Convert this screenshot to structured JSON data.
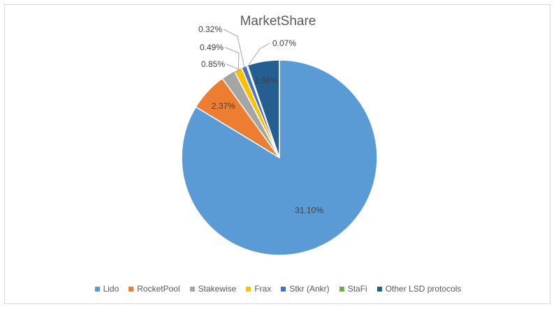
{
  "chart_data": {
    "type": "pie",
    "title": "MarketShare",
    "slices": [
      {
        "label": "Lido",
        "value": 31.1,
        "display": "31.10%",
        "color": "#5b9bd5"
      },
      {
        "label": "RocketPool",
        "value": 2.37,
        "display": "2.37%",
        "color": "#ed7d31"
      },
      {
        "label": "Stakewise",
        "value": 0.85,
        "display": "0.85%",
        "color": "#a5a5a5"
      },
      {
        "label": "Frax",
        "value": 0.49,
        "display": "0.49%",
        "color": "#ffc000"
      },
      {
        "label": "Stkr (Ankr)",
        "value": 0.32,
        "display": "0.32%",
        "color": "#4472c4"
      },
      {
        "label": "StaFi",
        "value": 0.07,
        "display": "0.07%",
        "color": "#70ad47"
      },
      {
        "label": "Other LSD protocols",
        "value": 1.96,
        "display": "1.96%",
        "color": "#255e91"
      }
    ],
    "legend_position": "bottom"
  }
}
